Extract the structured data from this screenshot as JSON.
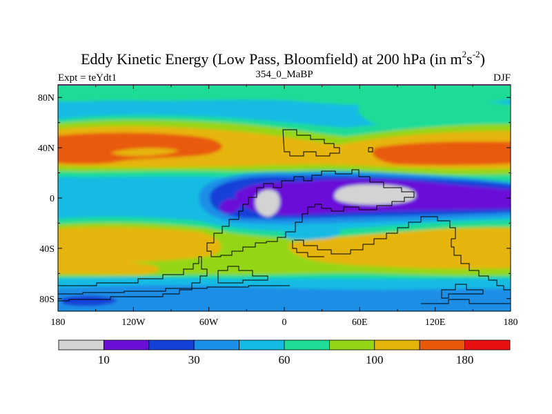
{
  "chart_data": {
    "type": "heatmap",
    "title_main": "Eddy Kinetic Energy (Low Pass, Bloomfield) at 200 hPa (in m",
    "title_sup1": "2",
    "title_mid": "s",
    "title_sup2": "-2",
    "title_end": ")",
    "subtitle_left": "Expt = teYdt1",
    "subtitle_center": "354_0_MaBP",
    "subtitle_right": "DJF",
    "x_ticks": [
      "180",
      "120W",
      "60W",
      "0",
      "60E",
      "120E",
      "180"
    ],
    "y_ticks": [
      "80N",
      "40N",
      "0",
      "40S",
      "80S"
    ],
    "y_tick_values": [
      80,
      40,
      0,
      -40,
      -80
    ],
    "x_range": [
      -180,
      180
    ],
    "y_range": [
      -90,
      90
    ],
    "colorbar": {
      "colors": [
        "#d3d3d3",
        "#6a0fd8",
        "#1540d8",
        "#1b8ee6",
        "#13bbe4",
        "#1fdc96",
        "#94d614",
        "#e6b50a",
        "#e85a0a",
        "#e81010"
      ],
      "labels": [
        "10",
        "30",
        "60",
        "100",
        "180"
      ]
    },
    "fill_colors": {
      "gray": "#d3d3d3",
      "purple": "#6a0fd8",
      "blue": "#1540d8",
      "lightblue": "#1b8ee6",
      "cyan": "#13bbe4",
      "green": "#1fdc96",
      "yellowgreen": "#94d614",
      "yellow": "#e6b50a",
      "orange": "#e85a0a",
      "red": "#e81010"
    }
  }
}
